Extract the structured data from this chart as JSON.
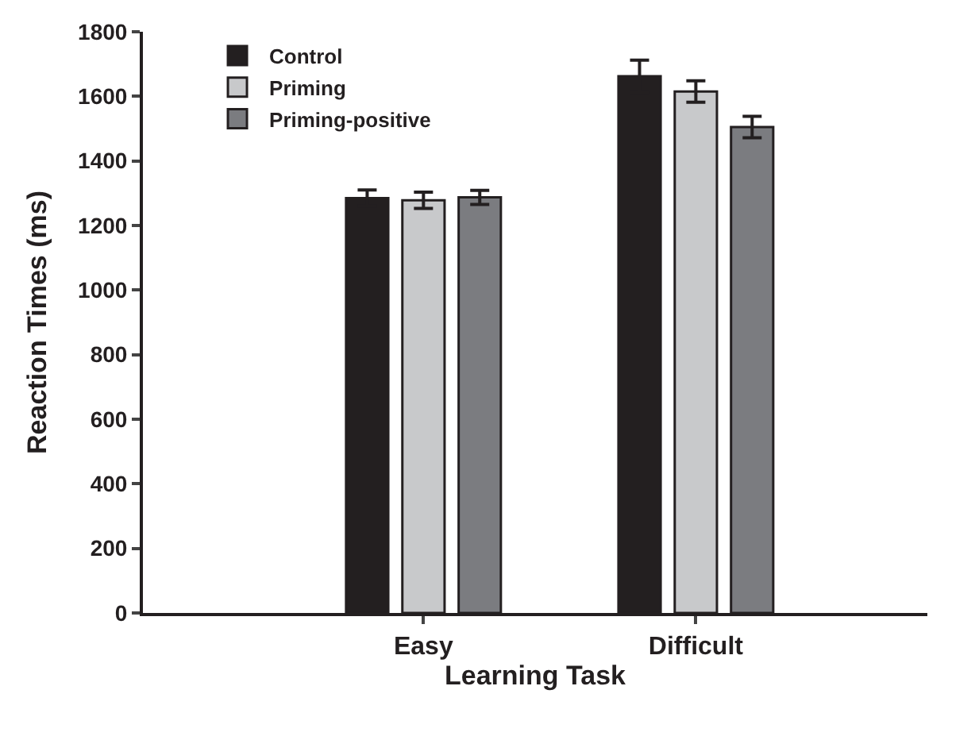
{
  "chart_data": {
    "type": "bar",
    "xlabel": "Learning Task",
    "ylabel": "Reaction Times (ms)",
    "categories": [
      "Easy",
      "Difficult"
    ],
    "series": [
      {
        "name": "Control",
        "color": "#231f20",
        "values": [
          1285,
          1662
        ],
        "errors": [
          25,
          50
        ]
      },
      {
        "name": "Priming",
        "color": "#c8c9cb",
        "values": [
          1278,
          1615
        ],
        "errors": [
          25,
          33
        ]
      },
      {
        "name": "Priming-positive",
        "color": "#7b7c80",
        "values": [
          1287,
          1505
        ],
        "errors": [
          22,
          33
        ]
      }
    ],
    "ylim": [
      0,
      1800
    ],
    "yticks": [
      0,
      200,
      400,
      600,
      800,
      1000,
      1200,
      1400,
      1600,
      1800
    ],
    "legend": "top left"
  }
}
